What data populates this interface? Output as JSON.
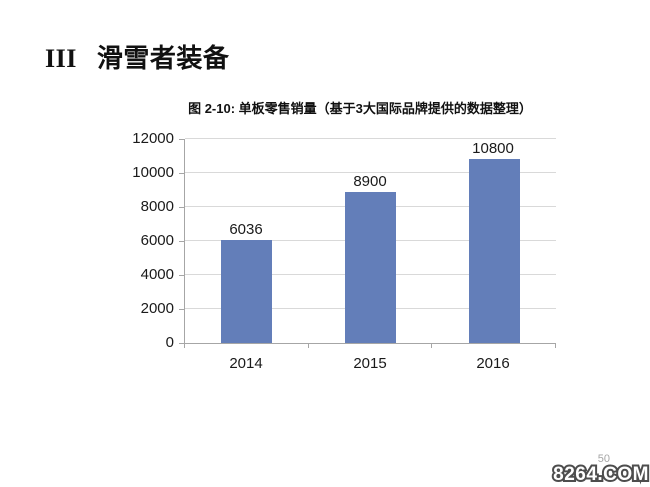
{
  "heading": {
    "numeral": "III",
    "title": "滑雪者装备"
  },
  "chart_data": {
    "type": "bar",
    "title": "图 2-10: 单板零售销量（基于3大国际品牌提供的数据整理）",
    "categories": [
      "2014",
      "2015",
      "2016"
    ],
    "values": [
      6036,
      8900,
      10800
    ],
    "data_labels": [
      "6036",
      "8900",
      "10800"
    ],
    "xlabel": "",
    "ylabel": "",
    "ylim": [
      0,
      12000
    ],
    "yticks": [
      0,
      2000,
      4000,
      6000,
      8000,
      10000,
      12000
    ],
    "grid": true,
    "legend": "none",
    "bar_color": "#637eb9",
    "gridline_color": "#d9d9d9",
    "axis_color": "#a6a6a6",
    "label_color": "#1a1a1a"
  },
  "footer": {
    "page_number": "50",
    "watermark": "8264.COM"
  }
}
